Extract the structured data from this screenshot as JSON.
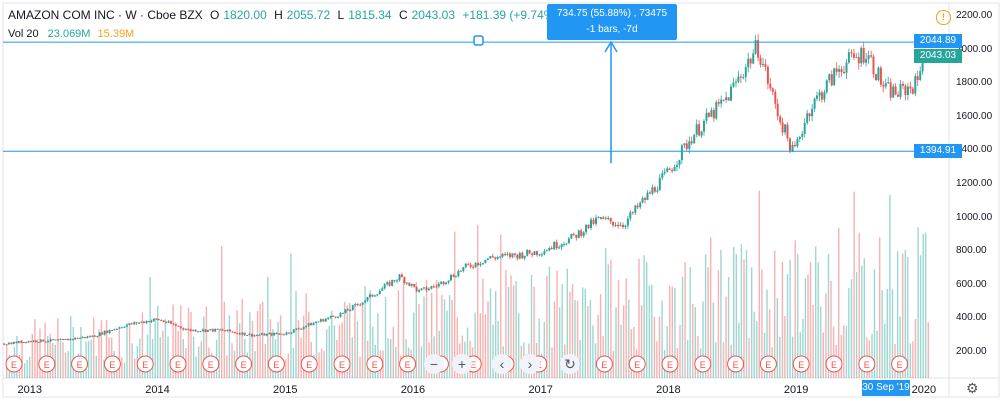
{
  "header": {
    "symbol": "AMAZON COM INC · W · Cboe BZX",
    "open_label": "O",
    "open": "1820.00",
    "high_label": "H",
    "high": "2055.72",
    "low_label": "L",
    "low": "1815.34",
    "close_label": "C",
    "close": "2043.03",
    "change": "+181.39 (+9.74%)"
  },
  "volume": {
    "label": "Vol 20",
    "value1": "23.069M",
    "value2": "15.39M"
  },
  "measure_tooltip": {
    "line1": "734.75 (55.88%) , 73475",
    "line2": "-1 bars, -7d"
  },
  "price_tags": {
    "upper": "2044.89",
    "last": "2043.03",
    "lower": "1394.91"
  },
  "date_tag": "30 Sep '19",
  "controls": {
    "zoom_out": "−",
    "zoom_in": "+",
    "scroll_left": "‹",
    "scroll_right": "›",
    "reset": "↻"
  },
  "earnings_marker": "E",
  "colors": {
    "up": "#26a69a",
    "down": "#ef5350",
    "accent": "#2196f3",
    "vol_avg": "#f7a21b"
  },
  "chart_data": {
    "type": "candlestick",
    "title": "AMAZON COM INC · W · Cboe BZX",
    "y_ticks": [
      200,
      400,
      600,
      800,
      1000,
      1200,
      1400,
      1600,
      1800,
      2000,
      2200
    ],
    "y_tick_labels": [
      "200.00",
      "400.00",
      "600.00",
      "800.00",
      "1000.00",
      "1200.00",
      "1400.00",
      "1600.00",
      "1800.00",
      "2000.00",
      "2200.00"
    ],
    "x_tick_labels": [
      "2013",
      "2014",
      "2015",
      "2016",
      "2017",
      "2018",
      "2019",
      "2020"
    ],
    "ylim": [
      0,
      2250
    ],
    "price_series": {
      "x": [
        2012.8,
        2013.0,
        2013.25,
        2013.5,
        2013.75,
        2014.0,
        2014.25,
        2014.5,
        2014.75,
        2015.0,
        2015.25,
        2015.45,
        2015.65,
        2015.9,
        2016.05,
        2016.2,
        2016.4,
        2016.6,
        2016.85,
        2017.0,
        2017.25,
        2017.45,
        2017.65,
        2017.85,
        2018.0,
        2018.2,
        2018.45,
        2018.7,
        2018.85,
        2018.98,
        2019.1,
        2019.35,
        2019.55,
        2019.7,
        2019.8,
        2019.95,
        2020.0
      ],
      "y": [
        250,
        265,
        270,
        295,
        360,
        395,
        330,
        330,
        300,
        310,
        380,
        430,
        520,
        650,
        560,
        600,
        700,
        760,
        780,
        800,
        880,
        990,
        960,
        1140,
        1270,
        1500,
        1700,
        2020,
        1640,
        1380,
        1640,
        1900,
        1990,
        1760,
        1740,
        1800,
        2043
      ]
    },
    "horizontal_lines": [
      2044.89,
      1394.91
    ],
    "volume_bars": "alternating up/down weekly volume, peak about 600",
    "earnings_markers": 28
  }
}
